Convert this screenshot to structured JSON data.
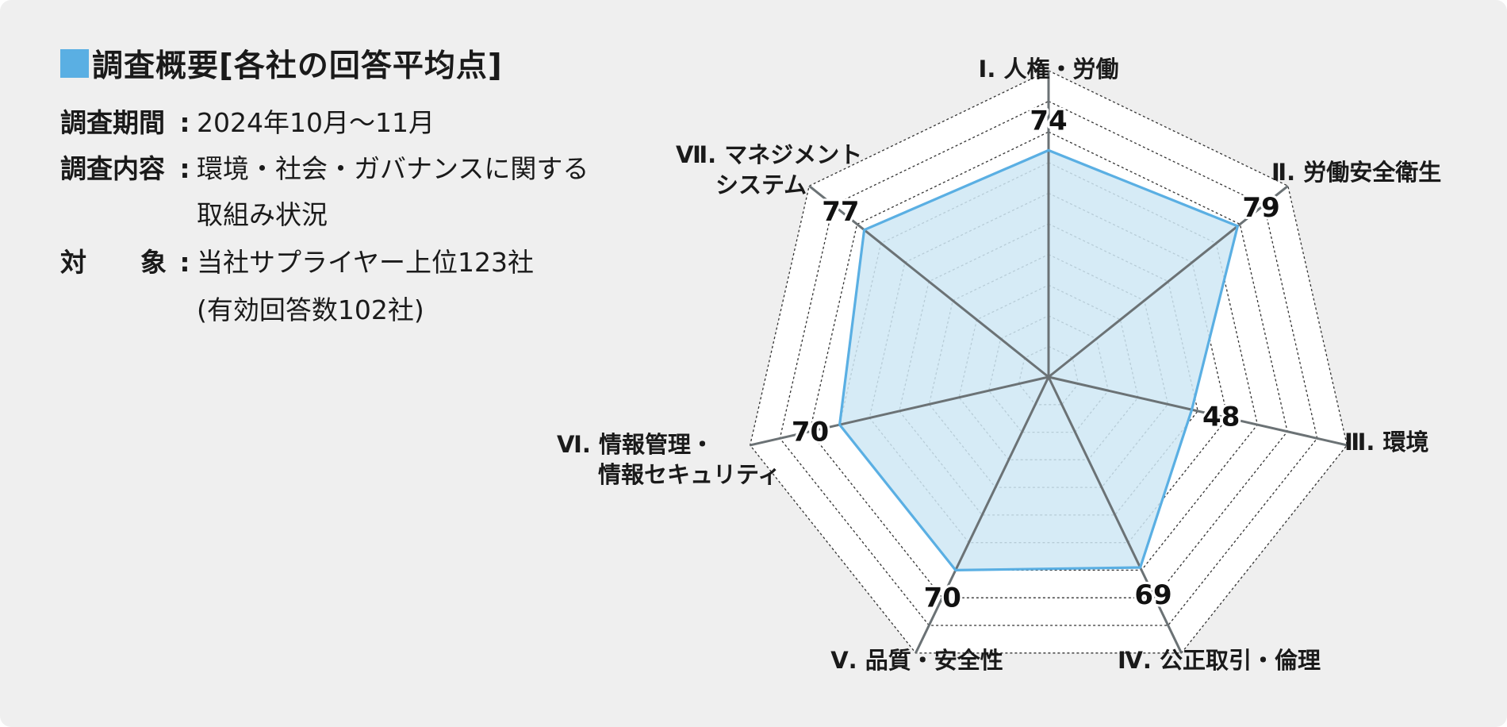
{
  "heading": {
    "title": "調査概要[各社の回答平均点]",
    "marker_color": "#5aafe3"
  },
  "survey_info": {
    "period": {
      "label": "調査期間",
      "colon": ":",
      "value": "2024年10月〜11月"
    },
    "content": {
      "label": "調査内容",
      "colon": ":",
      "value_line1": "環境・社会・ガバナンスに関する",
      "value_line2": "取組み状況"
    },
    "target": {
      "label": "対象",
      "colon": ":",
      "value_line1": "当社サプライヤー上位123社",
      "value_line2": "(有効回答数102社)"
    }
  },
  "chart_data": {
    "type": "radar",
    "axes": [
      {
        "label_line1": "Ⅰ. 人権・労働",
        "label_line2": "",
        "value": 74
      },
      {
        "label_line1": "Ⅱ. 労働安全衛生",
        "label_line2": "",
        "value": 79
      },
      {
        "label_line1": "Ⅲ. 環境",
        "label_line2": "",
        "value": 48
      },
      {
        "label_line1": "Ⅳ. 公正取引・倫理",
        "label_line2": "",
        "value": 69
      },
      {
        "label_line1": "Ⅴ. 品質・安全性",
        "label_line2": "",
        "value": 70
      },
      {
        "label_line1": "Ⅵ. 情報管理・",
        "label_line2": "情報セキュリティ",
        "value": 70
      },
      {
        "label_line1": "Ⅶ. マネジメント",
        "label_line2": "システム",
        "value": 77
      }
    ],
    "range": [
      0,
      100
    ],
    "grid_step": 10,
    "grid_shape": "heptagon",
    "colors": {
      "series_line": "#5aafe3",
      "series_fill": "#cfe7f5",
      "axis_spoke": "#6b7275",
      "grid": "#333333",
      "outer_fill": "#ffffff"
    }
  }
}
